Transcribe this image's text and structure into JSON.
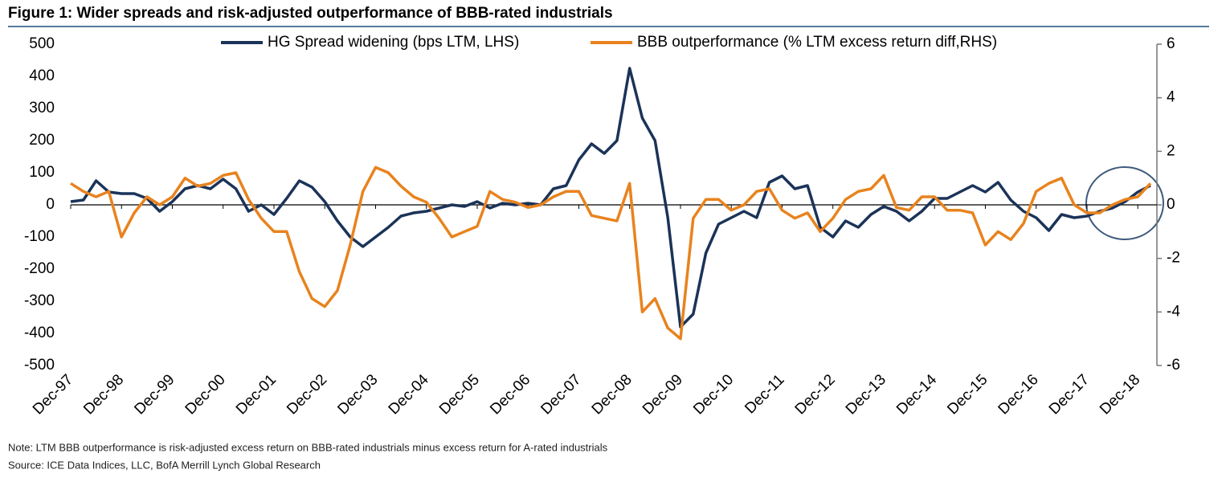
{
  "chart_data": {
    "type": "line",
    "title": "Figure 1: Wider spreads and risk-adjusted outperformance of BBB-rated industrials",
    "note": "Note: LTM BBB outperformance is risk-adjusted excess return on BBB-rated industrials minus excess return for A-rated industrials",
    "source": "Source: ICE Data Indices, LLC, BofA Merrill Lynch Global Research",
    "categories": [
      "Dec-97",
      null,
      null,
      null,
      "Dec-98",
      null,
      null,
      null,
      "Dec-99",
      null,
      null,
      null,
      "Dec-00",
      null,
      null,
      null,
      "Dec-01",
      null,
      null,
      null,
      "Dec-02",
      null,
      null,
      null,
      "Dec-03",
      null,
      null,
      null,
      "Dec-04",
      null,
      null,
      null,
      "Dec-05",
      null,
      null,
      null,
      "Dec-06",
      null,
      null,
      null,
      "Dec-07",
      null,
      null,
      null,
      "Dec-08",
      null,
      null,
      null,
      "Dec-09",
      null,
      null,
      null,
      "Dec-10",
      null,
      null,
      null,
      "Dec-11",
      null,
      null,
      null,
      "Dec-12",
      null,
      null,
      null,
      "Dec-13",
      null,
      null,
      null,
      "Dec-14",
      null,
      null,
      null,
      "Dec-15",
      null,
      null,
      null,
      "Dec-16",
      null,
      null,
      null,
      "Dec-17",
      null,
      null,
      null,
      "Dec-18",
      null
    ],
    "series": [
      {
        "name": "HG Spread widening (bps LTM, LHS)",
        "color": "#1b3358",
        "values": [
          10,
          15,
          75,
          40,
          35,
          35,
          20,
          -20,
          10,
          50,
          60,
          50,
          80,
          50,
          -20,
          0,
          -30,
          20,
          75,
          55,
          10,
          -50,
          -100,
          -130,
          -100,
          -70,
          -35,
          -25,
          -20,
          -10,
          0,
          -5,
          10,
          -10,
          5,
          0,
          5,
          0,
          50,
          60,
          140,
          190,
          160,
          200,
          425,
          270,
          200,
          -40,
          -380,
          -340,
          -150,
          -60,
          -40,
          -20,
          -40,
          70,
          90,
          50,
          60,
          -70,
          -100,
          -50,
          -70,
          -30,
          -5,
          -20,
          -50,
          -20,
          20,
          20,
          40,
          60,
          40,
          70,
          15,
          -20,
          -40,
          -80,
          -30,
          -40,
          -35,
          -20,
          -10,
          10,
          40,
          60
        ]
      },
      {
        "name": "BBB outperformance (% LTM excess return diff,RHS)",
        "color": "#e8831e",
        "axis": "y2",
        "values": [
          0.8,
          0.5,
          0.3,
          0.5,
          -1.2,
          -0.3,
          0.3,
          0,
          0.3,
          1.0,
          0.7,
          0.8,
          1.1,
          1.2,
          0.2,
          -0.5,
          -1.0,
          -1.0,
          -2.5,
          -3.5,
          -3.8,
          -3.2,
          -1.5,
          0.5,
          1.4,
          1.2,
          0.7,
          0.3,
          0.1,
          -0.5,
          -1.2,
          -1.0,
          -0.8,
          0.5,
          0.2,
          0.1,
          -0.1,
          0,
          0.3,
          0.5,
          0.5,
          -0.4,
          -0.5,
          -0.6,
          0.8,
          -4.0,
          -3.5,
          -4.6,
          -5.0,
          -0.5,
          0.2,
          0.2,
          -0.2,
          0,
          0.5,
          0.6,
          -0.2,
          -0.5,
          -0.3,
          -1.0,
          -0.5,
          0.2,
          0.5,
          0.6,
          1.1,
          -0.1,
          -0.2,
          0.3,
          0.3,
          -0.2,
          -0.2,
          -0.3,
          -1.5,
          -1.0,
          -1.3,
          -0.7,
          0.5,
          0.8,
          1.0,
          0,
          -0.3,
          -0.3,
          0,
          0.2,
          0.3,
          0.8
        ]
      }
    ],
    "ylim": [
      -500,
      500
    ],
    "yticks": [
      -500,
      -400,
      -300,
      -200,
      -100,
      0,
      100,
      200,
      300,
      400,
      500
    ],
    "y2lim": [
      -6,
      6
    ],
    "y2ticks": [
      -6,
      -4,
      -2,
      0,
      2,
      4,
      6
    ],
    "grid": false
  }
}
